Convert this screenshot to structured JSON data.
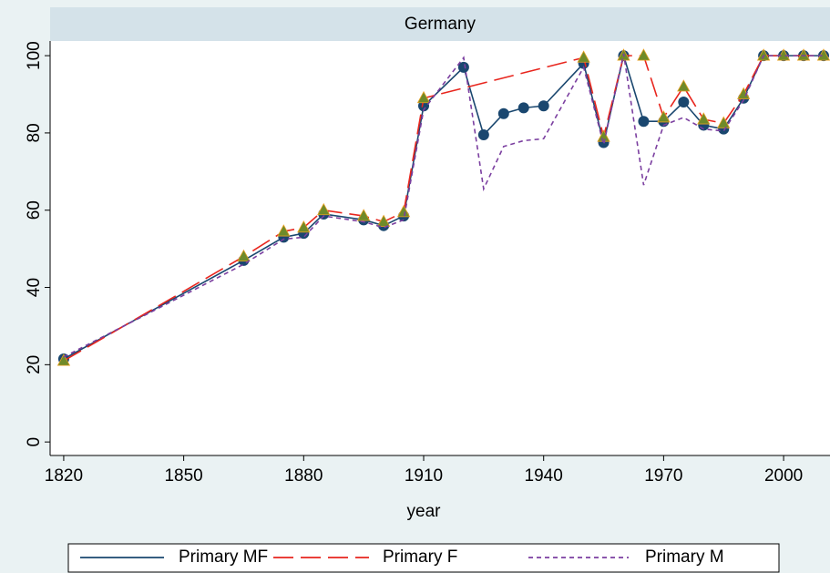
{
  "chart_data": {
    "type": "line",
    "title": "Germany",
    "xlabel": "year",
    "xlim": [
      1816.6,
      2011.6
    ],
    "xticks": [
      1820,
      1850,
      1880,
      1910,
      1940,
      1970,
      2000
    ],
    "ylim": [
      -3.5,
      103.8
    ],
    "yticks": [
      0,
      20,
      40,
      60,
      80,
      100
    ],
    "series": [
      {
        "name": "Primary MF",
        "color": "#1a476f",
        "dash": "solid",
        "marker": "circle",
        "marker_color": "#1a476f",
        "x": [
          1820,
          1865,
          1875,
          1880,
          1885,
          1895,
          1900,
          1905,
          1910,
          1920,
          1925,
          1930,
          1935,
          1940,
          1950,
          1955,
          1960,
          1965,
          1970,
          1975,
          1980,
          1985,
          1990,
          1995,
          2000,
          2005,
          2010
        ],
        "values": [
          21.5,
          47,
          53,
          54,
          59,
          57.5,
          56,
          58.5,
          87,
          97,
          79.5,
          85,
          86.5,
          87,
          98,
          77.5,
          100,
          83,
          83,
          88,
          82,
          81,
          89,
          100,
          100,
          100,
          100
        ]
      },
      {
        "name": "Primary F",
        "color": "#e8261e",
        "dash": "long",
        "marker": "triangle",
        "marker_color": "#6f8a2a",
        "x": [
          1820,
          1865,
          1875,
          1880,
          1885,
          1895,
          1900,
          1905,
          1910,
          1950,
          1955,
          1960,
          1965,
          1970,
          1975,
          1980,
          1985,
          1990,
          1995,
          2000,
          2005,
          2010
        ],
        "values": [
          21,
          48,
          54.5,
          55.5,
          60,
          58.5,
          57,
          59.5,
          89,
          99.5,
          79,
          100,
          100,
          84,
          92,
          83.5,
          82.5,
          90,
          100,
          100,
          100,
          100
        ]
      },
      {
        "name": "Primary M",
        "color": "#7b3fa0",
        "dash": "short",
        "x": [
          1820,
          1865,
          1875,
          1880,
          1885,
          1895,
          1900,
          1905,
          1910,
          1920,
          1925,
          1930,
          1935,
          1940,
          1950,
          1955,
          1960,
          1965,
          1970,
          1975,
          1980,
          1985,
          1990,
          1995,
          2000,
          2005,
          2010
        ],
        "values": [
          22,
          46,
          52.5,
          53,
          58.5,
          57,
          55.5,
          57.5,
          86,
          99.5,
          65.5,
          76.5,
          78,
          78.5,
          97,
          77,
          100.5,
          66.5,
          82,
          84,
          81,
          80.5,
          88.5,
          100,
          100,
          100,
          100
        ]
      }
    ]
  }
}
